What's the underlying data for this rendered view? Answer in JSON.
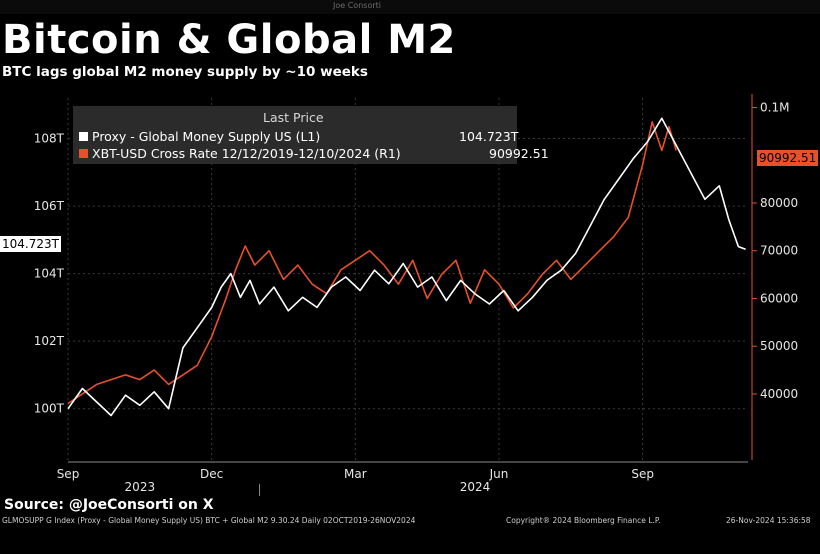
{
  "watermark": "Joe Consorti",
  "title": "Bitcoin & Global M2",
  "subtitle": "BTC lags global M2 money supply by ~10 weeks",
  "source": "Source: @JoeConsorti on X",
  "footer": {
    "left": "GLMOSUPP G Index (Proxy - Global Money Supply US) BTC + Global M2 9.30.24  Daily 02OCT2019-26NOV2024",
    "mid": "Copyright® 2024 Bloomberg Finance L.P.",
    "right": "26-Nov-2024 15:36:58"
  },
  "legend": {
    "header": "Last Price",
    "m2_label": "Proxy - Global Money Supply US  (L1)",
    "m2_value": "104.723T",
    "btc_label": "XBT-USD Cross Rate 12/12/2019-12/10/2024  (R1)",
    "btc_value": "90992.51"
  },
  "price_tags": {
    "left": "104.723T",
    "right": "90992.51"
  },
  "colors": {
    "m2": "#ffffff",
    "btc": "#e8502b",
    "background": "#000000"
  },
  "chart_data": {
    "type": "line",
    "x_ticks": [
      {
        "label": "Sep",
        "x": 0
      },
      {
        "label": "Dec",
        "x": 3
      },
      {
        "label": "Mar",
        "x": 6
      },
      {
        "label": "Jun",
        "x": 9
      },
      {
        "label": "Sep",
        "x": 12
      }
    ],
    "year_labels": [
      {
        "label": "2023",
        "x": 1.5
      },
      {
        "label": "2024",
        "x": 8.5
      }
    ],
    "x_range": [
      0,
      14.2
    ],
    "left_axis": {
      "ticks": [
        "100T",
        "102T",
        "104T",
        "106T",
        "108T"
      ],
      "values": [
        100,
        102,
        104,
        106,
        108
      ],
      "range": [
        98.6,
        109.2
      ]
    },
    "right_axis": {
      "ticks": [
        "40000",
        "50000",
        "60000",
        "70000",
        "80000",
        "0.1M"
      ],
      "values": [
        40000,
        50000,
        60000,
        70000,
        80000,
        100000
      ],
      "range": [
        27000,
        102000
      ]
    },
    "series": [
      {
        "name": "Proxy - Global Money Supply US  (L1)",
        "axis": "left",
        "points": [
          [
            0,
            100.0
          ],
          [
            0.3,
            100.6
          ],
          [
            0.6,
            100.2
          ],
          [
            0.9,
            99.8
          ],
          [
            1.2,
            100.4
          ],
          [
            1.5,
            100.1
          ],
          [
            1.8,
            100.5
          ],
          [
            2.1,
            100.0
          ],
          [
            2.4,
            101.8
          ],
          [
            2.7,
            102.4
          ],
          [
            3.0,
            103.0
          ],
          [
            3.2,
            103.6
          ],
          [
            3.4,
            104.0
          ],
          [
            3.6,
            103.3
          ],
          [
            3.8,
            103.8
          ],
          [
            4.0,
            103.1
          ],
          [
            4.3,
            103.6
          ],
          [
            4.6,
            102.9
          ],
          [
            4.9,
            103.3
          ],
          [
            5.2,
            103.0
          ],
          [
            5.5,
            103.6
          ],
          [
            5.8,
            103.9
          ],
          [
            6.1,
            103.5
          ],
          [
            6.4,
            104.1
          ],
          [
            6.7,
            103.7
          ],
          [
            7.0,
            104.3
          ],
          [
            7.3,
            103.6
          ],
          [
            7.6,
            103.9
          ],
          [
            7.9,
            103.2
          ],
          [
            8.2,
            103.8
          ],
          [
            8.5,
            103.4
          ],
          [
            8.8,
            103.1
          ],
          [
            9.1,
            103.5
          ],
          [
            9.4,
            102.9
          ],
          [
            9.7,
            103.3
          ],
          [
            10.0,
            103.8
          ],
          [
            10.3,
            104.1
          ],
          [
            10.6,
            104.6
          ],
          [
            10.9,
            105.4
          ],
          [
            11.2,
            106.2
          ],
          [
            11.5,
            106.8
          ],
          [
            11.8,
            107.4
          ],
          [
            12.1,
            107.9
          ],
          [
            12.4,
            108.6
          ],
          [
            12.7,
            107.8
          ],
          [
            13.0,
            107.0
          ],
          [
            13.3,
            106.2
          ],
          [
            13.6,
            106.6
          ],
          [
            13.8,
            105.6
          ],
          [
            14.0,
            104.8
          ],
          [
            14.15,
            104.72
          ]
        ]
      },
      {
        "name": "XBT-USD Cross Rate 12/12/2019-12/10/2024  (R1)",
        "axis": "right",
        "points": [
          [
            0,
            38000
          ],
          [
            0.3,
            40000
          ],
          [
            0.6,
            42000
          ],
          [
            0.9,
            43000
          ],
          [
            1.2,
            44000
          ],
          [
            1.5,
            43000
          ],
          [
            1.8,
            45000
          ],
          [
            2.1,
            42000
          ],
          [
            2.4,
            44000
          ],
          [
            2.7,
            46000
          ],
          [
            3.0,
            52000
          ],
          [
            3.3,
            60000
          ],
          [
            3.5,
            66000
          ],
          [
            3.7,
            71000
          ],
          [
            3.9,
            67000
          ],
          [
            4.2,
            70000
          ],
          [
            4.5,
            64000
          ],
          [
            4.8,
            67000
          ],
          [
            5.1,
            63000
          ],
          [
            5.4,
            61000
          ],
          [
            5.7,
            66000
          ],
          [
            6.0,
            68000
          ],
          [
            6.3,
            70000
          ],
          [
            6.6,
            67000
          ],
          [
            6.9,
            63000
          ],
          [
            7.2,
            68000
          ],
          [
            7.5,
            60000
          ],
          [
            7.8,
            65000
          ],
          [
            8.1,
            68000
          ],
          [
            8.4,
            59000
          ],
          [
            8.7,
            66000
          ],
          [
            9.0,
            63000
          ],
          [
            9.3,
            58000
          ],
          [
            9.6,
            61000
          ],
          [
            9.9,
            65000
          ],
          [
            10.2,
            68000
          ],
          [
            10.5,
            64000
          ],
          [
            10.8,
            67000
          ],
          [
            11.1,
            70000
          ],
          [
            11.4,
            73000
          ],
          [
            11.7,
            77000
          ],
          [
            12.0,
            88000
          ],
          [
            12.2,
            97000
          ],
          [
            12.4,
            91000
          ],
          [
            12.55,
            96000
          ],
          [
            12.7,
            90992.51
          ]
        ]
      }
    ]
  }
}
